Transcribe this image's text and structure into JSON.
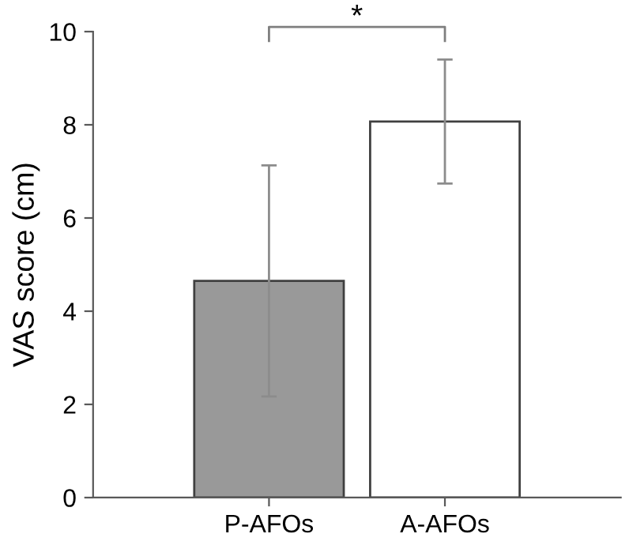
{
  "chart_data": {
    "type": "bar",
    "ylabel": "VAS score (cm)",
    "categories": [
      "P-AFOs",
      "A-AFOs"
    ],
    "values": [
      4.65,
      8.07
    ],
    "colors": [
      "#999999",
      "#ffffff"
    ],
    "errors": [
      2.48,
      1.33
    ],
    "ylim": [
      0,
      10
    ],
    "yticks": [
      0,
      2,
      4,
      6,
      8,
      10
    ],
    "grid": false,
    "legend": false,
    "annotations": [
      "*"
    ]
  }
}
